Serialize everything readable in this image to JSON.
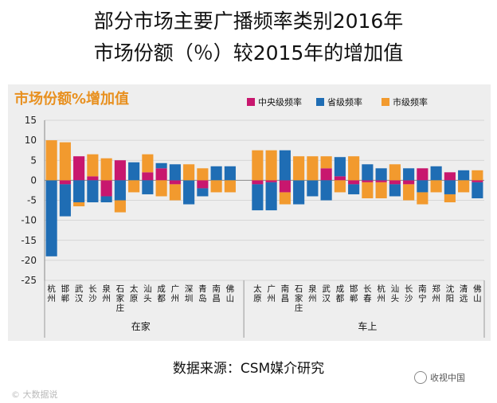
{
  "title_line1": "部分市场主要广播频率类别2016年",
  "title_line2": "市场份额（％）较2015年的增加值",
  "source": "数据来源：CSM媒介研究",
  "watermark_left": "© 大数据说",
  "watermark_right": "收视中国",
  "wm_left_icon": "copyright-icon",
  "wm_right_icon": "wechat-account-icon",
  "colors": {
    "central": "#c8176e",
    "provincial": "#1f6db4",
    "municipal": "#f29a2e",
    "panel": "#eeeeee",
    "title_accent": "#e8901f"
  },
  "chart_data": {
    "type": "bar",
    "stacking": "diverging-stacked",
    "title": "市场份额%增加值",
    "ylim": [
      -25,
      15
    ],
    "yticks": [
      15,
      10,
      5,
      0,
      -5,
      -10,
      -15,
      -20,
      -25
    ],
    "grid": true,
    "legend": [
      "中央级频率",
      "省级频率",
      "市级频率"
    ],
    "legend_position": "top-right",
    "groups": [
      {
        "name": "在家",
        "start": 0,
        "end": 15
      },
      {
        "name": "车上",
        "start": 16,
        "end": 33
      }
    ],
    "categories": [
      "杭州",
      "邯郸",
      "武汉",
      "长沙",
      "泉州",
      "石家庄",
      "太原",
      "汕头",
      "成都",
      "广州",
      "深圳",
      "青岛",
      "南昌",
      "佛山",
      "太原",
      "广州",
      "南昌",
      "石家庄",
      "泉州",
      "武汉",
      "成都",
      "邯郸",
      "长春",
      "杭州",
      "汕头",
      "长沙",
      "南宁",
      "郑州",
      "沈阳",
      "清远",
      "佛山"
    ],
    "series": [
      {
        "name": "中央级频率",
        "values": [
          0,
          -1,
          6,
          1,
          -4,
          5,
          0,
          2,
          3,
          -1,
          0,
          -2,
          0,
          0,
          -1,
          -0.5,
          -3,
          0,
          0,
          3,
          1,
          -1,
          -0.5,
          -0.5,
          -1,
          -1,
          3,
          0,
          2,
          0,
          -0.5
        ]
      },
      {
        "name": "省级频率",
        "values": [
          -19,
          -8,
          -5.5,
          -5.5,
          -1.5,
          -5,
          4.5,
          -3.5,
          1.3,
          4,
          -6,
          -2,
          3.5,
          3.5,
          -6.5,
          -7,
          7.5,
          -6,
          -4,
          -5,
          4.8,
          -2.5,
          4,
          3,
          -3,
          3,
          -3,
          3.5,
          -3.5,
          2.5,
          -4
        ]
      },
      {
        "name": "市级频率",
        "values": [
          10,
          9.5,
          -1,
          5.5,
          5.5,
          -3,
          -3,
          4.5,
          -4,
          -4,
          4,
          3,
          -3,
          -3,
          7.5,
          7.5,
          -3,
          6,
          6,
          3,
          -3,
          6,
          -4,
          -4,
          4,
          -4,
          -3,
          -3,
          -2,
          -3,
          2.5
        ]
      }
    ],
    "xlabel": "",
    "ylabel": ""
  }
}
